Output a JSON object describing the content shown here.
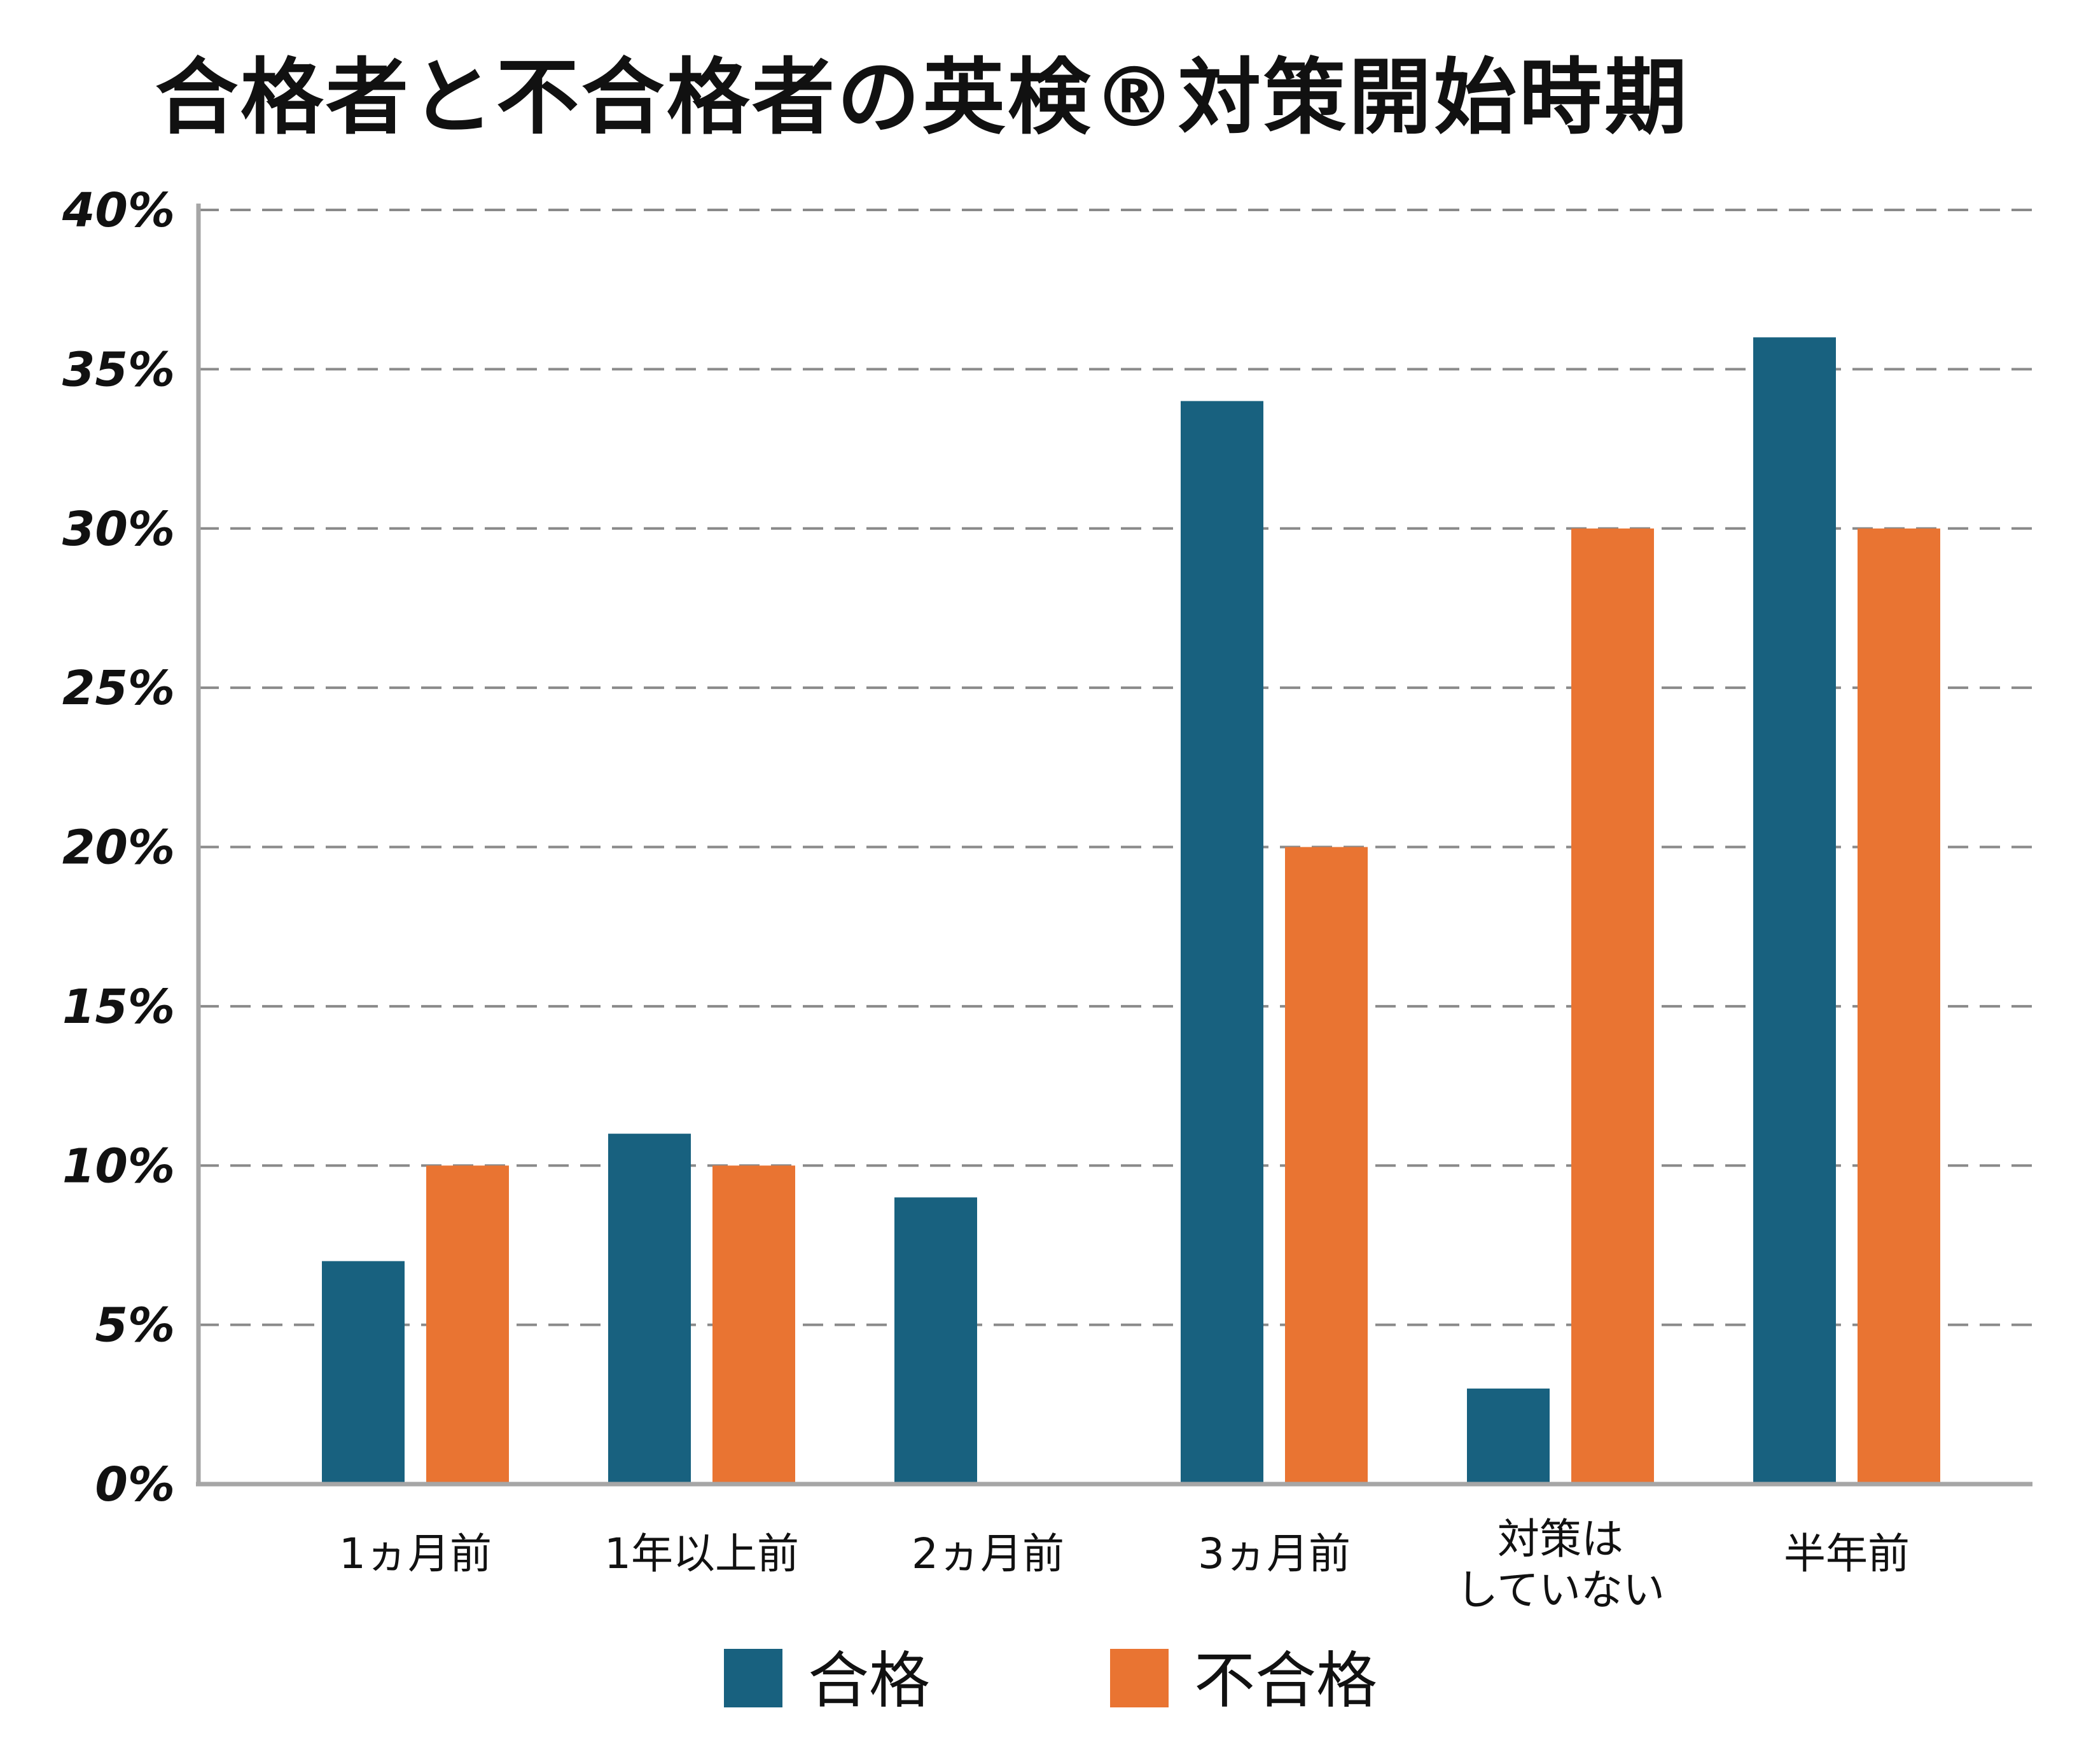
{
  "chart_data": {
    "type": "bar",
    "title": "合格者と不合格者の英検®対策開始時期",
    "xlabel": "",
    "ylabel": "",
    "ylim": [
      0,
      40
    ],
    "yticks": [
      0,
      5,
      10,
      15,
      20,
      25,
      30,
      35,
      40
    ],
    "ytick_labels": [
      "0%",
      "5%",
      "10%",
      "15%",
      "20%",
      "25%",
      "30%",
      "35%",
      "40%"
    ],
    "grid": true,
    "legend": "bottom",
    "categories": [
      [
        "1ヵ月前"
      ],
      [
        "1年以上前"
      ],
      [
        "2ヵ月前"
      ],
      [
        "3ヵ月前"
      ],
      [
        "対策は",
        "していない"
      ],
      [
        "半年前"
      ]
    ],
    "series": [
      {
        "name": "合格",
        "color": "#18617f",
        "values": [
          7,
          11,
          9,
          34,
          3,
          36
        ]
      },
      {
        "name": "不合格",
        "color": "#e97432",
        "values": [
          10,
          10,
          0,
          20,
          30,
          30
        ]
      }
    ]
  }
}
